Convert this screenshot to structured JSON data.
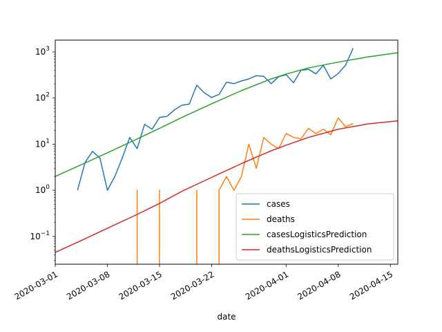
{
  "chart_data": {
    "type": "line",
    "title": "",
    "xlabel": "date",
    "ylabel": "",
    "y_scale": "log",
    "ylim": [
      0.025,
      1800
    ],
    "xlim": [
      "2020-03-01",
      "2020-04-16"
    ],
    "grid": false,
    "legend_position": "lower-right",
    "x_ticks": [
      "2020-03-01",
      "2020-03-08",
      "2020-03-15",
      "2020-03-22",
      "2020-04-01",
      "2020-04-08",
      "2020-04-15"
    ],
    "y_ticks": [
      {
        "value": 0.1,
        "base": "10",
        "exp": "-1"
      },
      {
        "value": 1,
        "base": "10",
        "exp": "0"
      },
      {
        "value": 10,
        "base": "10",
        "exp": "1"
      },
      {
        "value": 100,
        "base": "10",
        "exp": "2"
      },
      {
        "value": 1000,
        "base": "10",
        "exp": "3"
      }
    ],
    "series": [
      {
        "name": "cases",
        "color": "#1f77b4",
        "points": [
          [
            "2020-03-04",
            1
          ],
          [
            "2020-03-05",
            4
          ],
          [
            "2020-03-06",
            7
          ],
          [
            "2020-03-07",
            5
          ],
          [
            "2020-03-08",
            1
          ],
          [
            "2020-03-09",
            2
          ],
          [
            "2020-03-10",
            5
          ],
          [
            "2020-03-11",
            14
          ],
          [
            "2020-03-12",
            8
          ],
          [
            "2020-03-13",
            27
          ],
          [
            "2020-03-14",
            21
          ],
          [
            "2020-03-15",
            38
          ],
          [
            "2020-03-16",
            40
          ],
          [
            "2020-03-17",
            55
          ],
          [
            "2020-03-18",
            70
          ],
          [
            "2020-03-19",
            74
          ],
          [
            "2020-03-20",
            190
          ],
          [
            "2020-03-21",
            130
          ],
          [
            "2020-03-22",
            103
          ],
          [
            "2020-03-23",
            120
          ],
          [
            "2020-03-24",
            220
          ],
          [
            "2020-03-25",
            205
          ],
          [
            "2020-03-26",
            235
          ],
          [
            "2020-03-27",
            260
          ],
          [
            "2020-03-28",
            305
          ],
          [
            "2020-03-29",
            295
          ],
          [
            "2020-03-30",
            205
          ],
          [
            "2020-03-31",
            290
          ],
          [
            "2020-04-01",
            320
          ],
          [
            "2020-04-02",
            215
          ],
          [
            "2020-04-03",
            400
          ],
          [
            "2020-04-04",
            420
          ],
          [
            "2020-04-05",
            335
          ],
          [
            "2020-04-06",
            510
          ],
          [
            "2020-04-07",
            260
          ],
          [
            "2020-04-08",
            340
          ],
          [
            "2020-04-09",
            520
          ],
          [
            "2020-04-10",
            1200
          ]
        ]
      },
      {
        "name": "deaths",
        "color": "#ff7f0e",
        "points": [
          [
            "2020-03-12",
            1
          ],
          [
            "2020-03-15",
            1
          ],
          [
            "2020-03-20",
            1
          ],
          [
            "2020-03-23",
            1
          ],
          [
            "2020-03-24",
            2
          ],
          [
            "2020-03-25",
            1
          ],
          [
            "2020-03-26",
            2
          ],
          [
            "2020-03-27",
            10
          ],
          [
            "2020-03-28",
            3
          ],
          [
            "2020-03-29",
            14
          ],
          [
            "2020-03-30",
            10
          ],
          [
            "2020-03-31",
            8
          ],
          [
            "2020-04-01",
            17
          ],
          [
            "2020-04-02",
            14
          ],
          [
            "2020-04-03",
            13
          ],
          [
            "2020-04-04",
            22
          ],
          [
            "2020-04-05",
            17
          ],
          [
            "2020-04-06",
            21
          ],
          [
            "2020-04-07",
            16
          ],
          [
            "2020-04-08",
            37
          ],
          [
            "2020-04-09",
            24
          ],
          [
            "2020-04-10",
            28
          ]
        ]
      },
      {
        "name": "casesLogisticsPrediction",
        "color": "#2ca02c",
        "points": [
          [
            "2020-03-01",
            2.0
          ],
          [
            "2020-03-04",
            3.3
          ],
          [
            "2020-03-08",
            6.5
          ],
          [
            "2020-03-12",
            13
          ],
          [
            "2020-03-15",
            22
          ],
          [
            "2020-03-18",
            38
          ],
          [
            "2020-03-22",
            75
          ],
          [
            "2020-03-26",
            145
          ],
          [
            "2020-03-30",
            260
          ],
          [
            "2020-04-01",
            330
          ],
          [
            "2020-04-04",
            450
          ],
          [
            "2020-04-08",
            600
          ],
          [
            "2020-04-12",
            780
          ],
          [
            "2020-04-16",
            960
          ]
        ]
      },
      {
        "name": "deathsLogisticsPrediction",
        "color": "#d62728",
        "points": [
          [
            "2020-03-01",
            0.045
          ],
          [
            "2020-03-04",
            0.075
          ],
          [
            "2020-03-08",
            0.15
          ],
          [
            "2020-03-12",
            0.3
          ],
          [
            "2020-03-15",
            0.52
          ],
          [
            "2020-03-18",
            0.95
          ],
          [
            "2020-03-22",
            1.9
          ],
          [
            "2020-03-26",
            3.8
          ],
          [
            "2020-03-30",
            7.2
          ],
          [
            "2020-04-01",
            9.5
          ],
          [
            "2020-04-04",
            14
          ],
          [
            "2020-04-08",
            21
          ],
          [
            "2020-04-12",
            27.5
          ],
          [
            "2020-04-16",
            32
          ]
        ]
      }
    ]
  }
}
